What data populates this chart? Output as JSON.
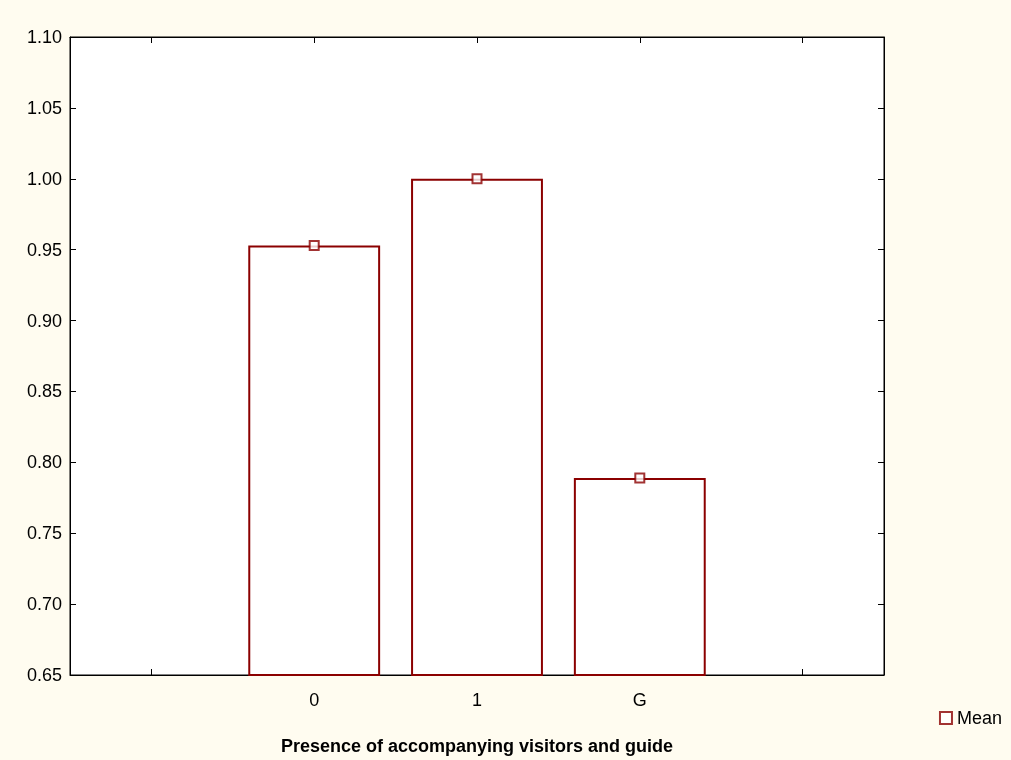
{
  "chart_data": {
    "type": "bar",
    "xlabel": "Presence of accompanying visitors and guide",
    "categories": [
      null,
      "0",
      "1",
      "G",
      null
    ],
    "series": [
      {
        "type": "bar",
        "color": "#8b0000",
        "values": [
          null,
          0.953,
          1.0,
          0.789,
          null
        ]
      },
      {
        "type": "scatter",
        "name": "Mean",
        "color": "#8b0000",
        "marker": "square",
        "x": [
          "0",
          "1",
          "G"
        ],
        "values": [
          0.953,
          1.0,
          0.789
        ]
      }
    ],
    "ylim": [
      0.65,
      1.1
    ],
    "yticks": [
      {
        "value": 0.65,
        "label": "0.65"
      },
      {
        "value": 0.7,
        "label": "0.70"
      },
      {
        "value": 0.75,
        "label": "0.75"
      },
      {
        "value": 0.8,
        "label": "0.80"
      },
      {
        "value": 0.85,
        "label": "0.85"
      },
      {
        "value": 0.9,
        "label": "0.90"
      },
      {
        "value": 0.95,
        "label": "0.95"
      },
      {
        "value": 1.0,
        "label": "1.00"
      },
      {
        "value": 1.05,
        "label": "1.05"
      },
      {
        "value": 1.1,
        "label": "1.10"
      }
    ],
    "grid": false,
    "legend": "bottom right"
  }
}
